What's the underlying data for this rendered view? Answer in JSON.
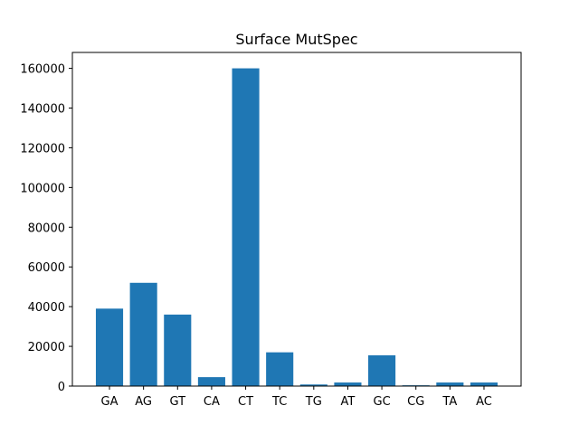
{
  "chart_data": {
    "type": "bar",
    "title": "Surface MutSpec",
    "xlabel": "",
    "ylabel": "",
    "categories": [
      "GA",
      "AG",
      "GT",
      "CA",
      "CT",
      "TC",
      "TG",
      "AT",
      "GC",
      "CG",
      "TA",
      "AC"
    ],
    "values": [
      39000,
      52000,
      36000,
      4500,
      160000,
      17000,
      800,
      1800,
      15500,
      400,
      1800,
      1800
    ],
    "ylim": [
      0,
      168000
    ],
    "yticks": [
      0,
      20000,
      40000,
      60000,
      80000,
      100000,
      120000,
      140000,
      160000
    ],
    "ytick_labels": [
      "0",
      "20000",
      "40000",
      "60000",
      "80000",
      "100000",
      "120000",
      "140000",
      "160000"
    ],
    "bar_color": "#1f77b4",
    "grid": false,
    "legend": "none"
  }
}
